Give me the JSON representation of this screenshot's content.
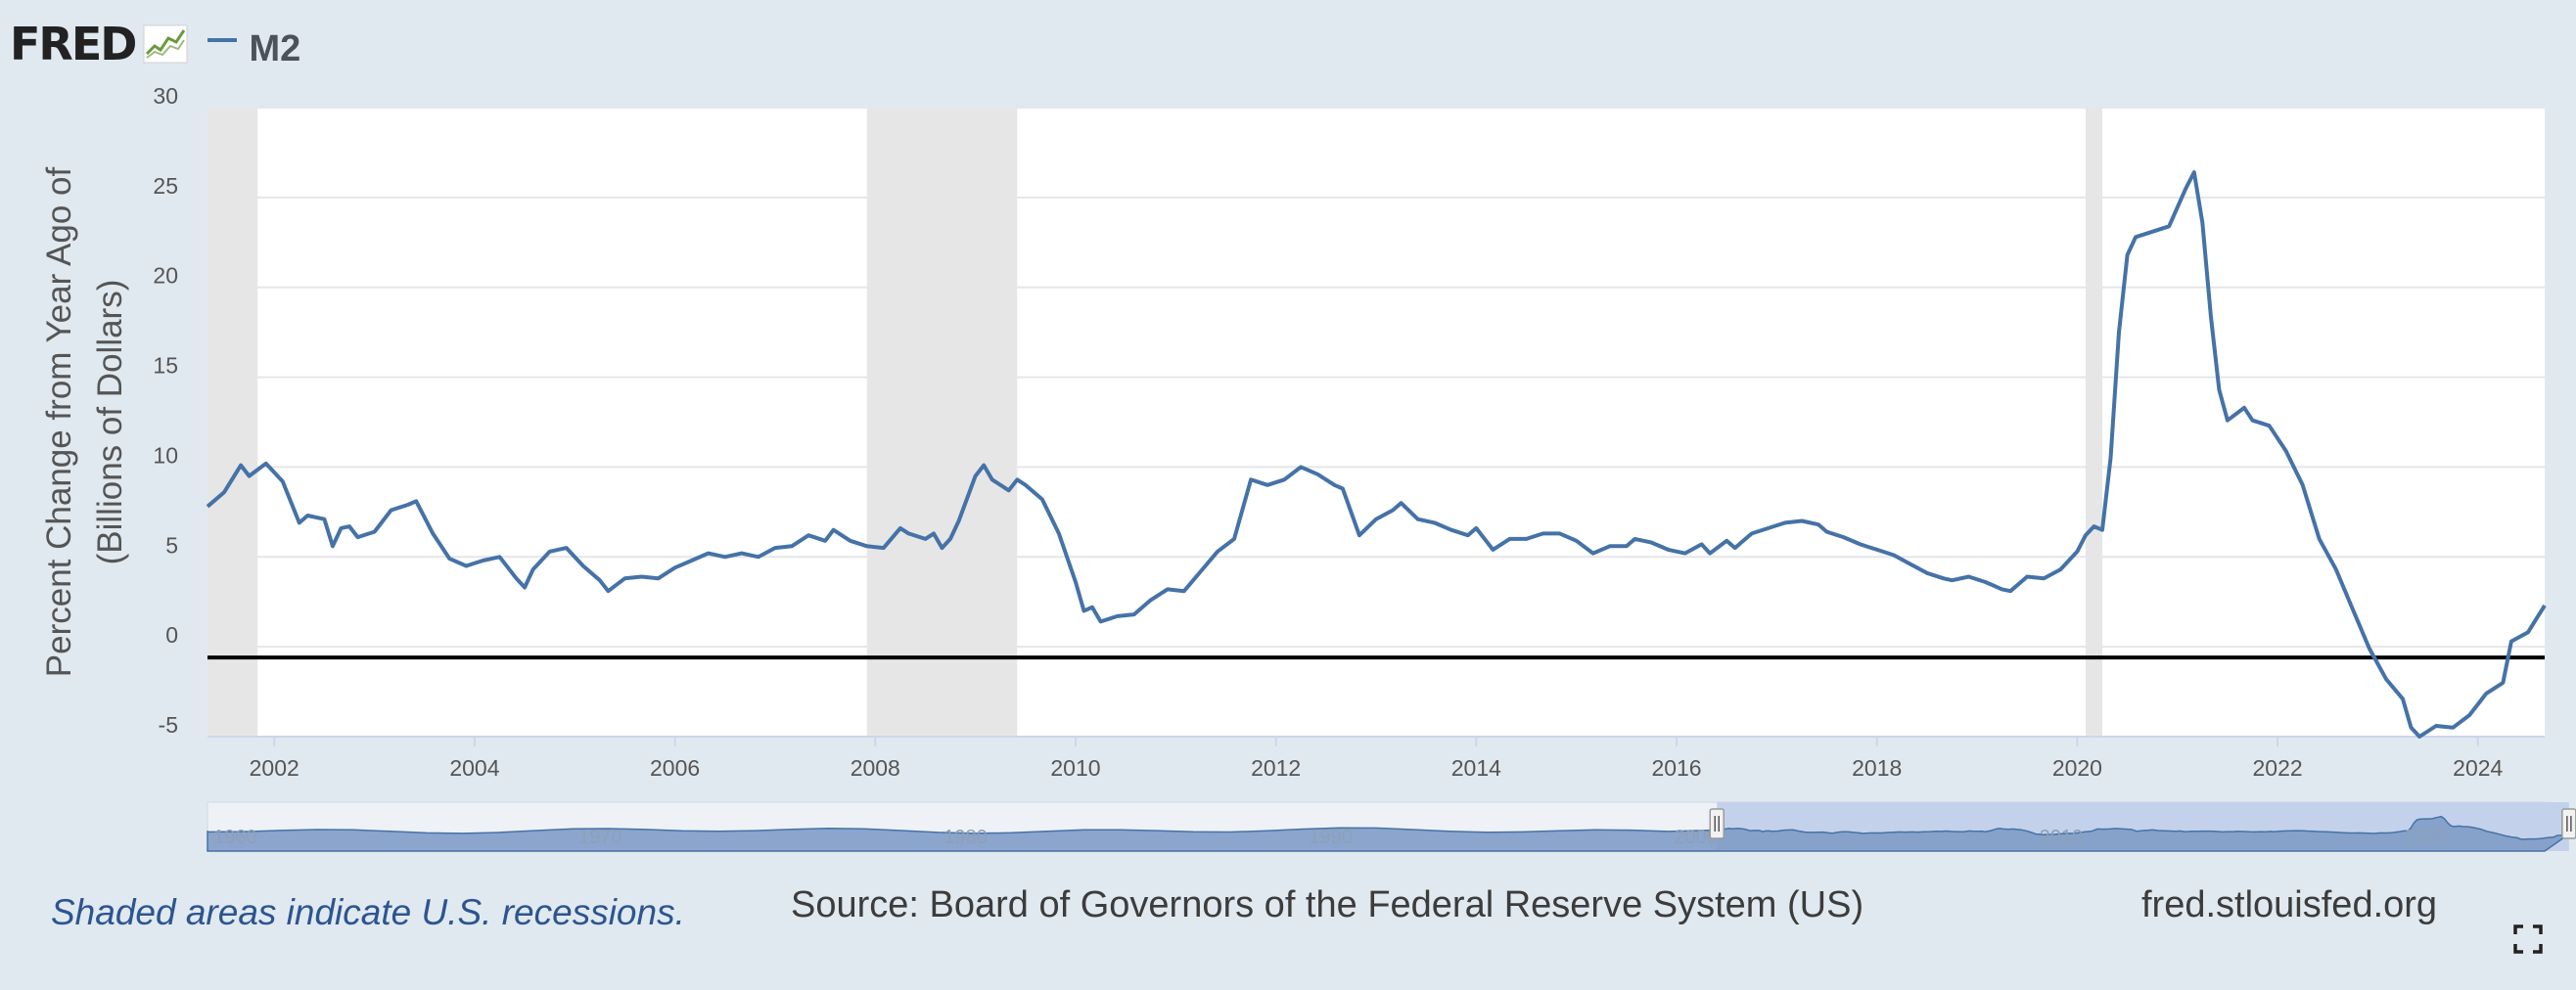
{
  "header": {
    "logo_text": "FRED",
    "legend_label": "M2"
  },
  "footer": {
    "recession_note": "Shaded areas indicate U.S. recessions.",
    "source": "Source: Board of Governors of the Federal Reserve System (US)",
    "site": "fred.stlouisfed.org"
  },
  "colors": {
    "series": "#4572a7",
    "recession": "#e6e6e6",
    "background": "#e1e9f0",
    "navigator_fill": "#7f9cc6",
    "navigator_selection": "#c3d2ea"
  },
  "icons": {
    "fullscreen": "fullscreen-icon",
    "logo_graph": "line-graph-icon"
  },
  "chart_data": {
    "type": "line",
    "ylabel": "Percent Change from Year Ago of (Billions of Dollars)",
    "ylabel_lines": [
      "Percent Change from Year Ago of",
      "(Billions of Dollars)"
    ],
    "ylim": [
      -5,
      30
    ],
    "yticks": [
      -5,
      0,
      5,
      10,
      15,
      20,
      25,
      30
    ],
    "xlim": [
      "2001-05",
      "2024-09"
    ],
    "xticks": [
      "2002",
      "2004",
      "2006",
      "2008",
      "2010",
      "2012",
      "2014",
      "2016",
      "2018",
      "2020",
      "2022",
      "2024"
    ],
    "zero_line": true,
    "grid": "horizontal",
    "recessions": [
      {
        "start": "2001-05",
        "end": "2001-11"
      },
      {
        "start": "2007-12",
        "end": "2009-06"
      },
      {
        "start": "2020-02",
        "end": "2020-04"
      }
    ],
    "series": [
      {
        "name": "M2",
        "points": [
          [
            "2001-05",
            7.8
          ],
          [
            "2001-07",
            8.6
          ],
          [
            "2001-09",
            10.1
          ],
          [
            "2001-10",
            9.5
          ],
          [
            "2001-12",
            10.2
          ],
          [
            "2002-02",
            9.2
          ],
          [
            "2002-04",
            6.9
          ],
          [
            "2002-05",
            7.3
          ],
          [
            "2002-07",
            7.1
          ],
          [
            "2002-08",
            5.6
          ],
          [
            "2002-09",
            6.6
          ],
          [
            "2002-10",
            6.7
          ],
          [
            "2002-11",
            6.1
          ],
          [
            "2003-01",
            6.4
          ],
          [
            "2003-03",
            7.6
          ],
          [
            "2003-05",
            7.9
          ],
          [
            "2003-06",
            8.1
          ],
          [
            "2003-08",
            6.3
          ],
          [
            "2003-10",
            4.9
          ],
          [
            "2003-12",
            4.5
          ],
          [
            "2004-02",
            4.8
          ],
          [
            "2004-04",
            5.0
          ],
          [
            "2004-06",
            3.8
          ],
          [
            "2004-07",
            3.3
          ],
          [
            "2004-08",
            4.3
          ],
          [
            "2004-10",
            5.3
          ],
          [
            "2004-12",
            5.5
          ],
          [
            "2005-02",
            4.5
          ],
          [
            "2005-04",
            3.7
          ],
          [
            "2005-05",
            3.1
          ],
          [
            "2005-07",
            3.8
          ],
          [
            "2005-09",
            3.9
          ],
          [
            "2005-11",
            3.8
          ],
          [
            "2006-01",
            4.4
          ],
          [
            "2006-03",
            4.8
          ],
          [
            "2006-05",
            5.2
          ],
          [
            "2006-07",
            5.0
          ],
          [
            "2006-09",
            5.2
          ],
          [
            "2006-11",
            5.0
          ],
          [
            "2007-01",
            5.5
          ],
          [
            "2007-03",
            5.6
          ],
          [
            "2007-05",
            6.2
          ],
          [
            "2007-07",
            5.9
          ],
          [
            "2007-08",
            6.5
          ],
          [
            "2007-10",
            5.9
          ],
          [
            "2007-12",
            5.6
          ],
          [
            "2008-02",
            5.5
          ],
          [
            "2008-04",
            6.6
          ],
          [
            "2008-05",
            6.3
          ],
          [
            "2008-07",
            6.0
          ],
          [
            "2008-08",
            6.3
          ],
          [
            "2008-09",
            5.5
          ],
          [
            "2008-10",
            6.0
          ],
          [
            "2008-11",
            7.0
          ],
          [
            "2009-01",
            9.5
          ],
          [
            "2009-02",
            10.1
          ],
          [
            "2009-03",
            9.3
          ],
          [
            "2009-05",
            8.7
          ],
          [
            "2009-06",
            9.3
          ],
          [
            "2009-07",
            9.0
          ],
          [
            "2009-09",
            8.2
          ],
          [
            "2009-11",
            6.3
          ],
          [
            "2010-01",
            3.6
          ],
          [
            "2010-02",
            2.0
          ],
          [
            "2010-03",
            2.2
          ],
          [
            "2010-04",
            1.4
          ],
          [
            "2010-06",
            1.7
          ],
          [
            "2010-08",
            1.8
          ],
          [
            "2010-10",
            2.6
          ],
          [
            "2010-12",
            3.2
          ],
          [
            "2011-02",
            3.1
          ],
          [
            "2011-04",
            4.2
          ],
          [
            "2011-06",
            5.3
          ],
          [
            "2011-08",
            6.0
          ],
          [
            "2011-10",
            9.3
          ],
          [
            "2011-12",
            9.0
          ],
          [
            "2012-02",
            9.3
          ],
          [
            "2012-04",
            10.0
          ],
          [
            "2012-06",
            9.6
          ],
          [
            "2012-08",
            9.0
          ],
          [
            "2012-09",
            8.8
          ],
          [
            "2012-11",
            6.2
          ],
          [
            "2013-01",
            7.1
          ],
          [
            "2013-03",
            7.6
          ],
          [
            "2013-04",
            8.0
          ],
          [
            "2013-06",
            7.1
          ],
          [
            "2013-08",
            6.9
          ],
          [
            "2013-10",
            6.5
          ],
          [
            "2013-12",
            6.2
          ],
          [
            "2014-01",
            6.6
          ],
          [
            "2014-03",
            5.4
          ],
          [
            "2014-05",
            6.0
          ],
          [
            "2014-07",
            6.0
          ],
          [
            "2014-09",
            6.3
          ],
          [
            "2014-11",
            6.3
          ],
          [
            "2015-01",
            5.9
          ],
          [
            "2015-03",
            5.2
          ],
          [
            "2015-05",
            5.6
          ],
          [
            "2015-07",
            5.6
          ],
          [
            "2015-08",
            6.0
          ],
          [
            "2015-10",
            5.8
          ],
          [
            "2015-12",
            5.4
          ],
          [
            "2016-02",
            5.2
          ],
          [
            "2016-04",
            5.7
          ],
          [
            "2016-05",
            5.2
          ],
          [
            "2016-07",
            5.9
          ],
          [
            "2016-08",
            5.5
          ],
          [
            "2016-10",
            6.3
          ],
          [
            "2016-12",
            6.6
          ],
          [
            "2017-02",
            6.9
          ],
          [
            "2017-04",
            7.0
          ],
          [
            "2017-06",
            6.8
          ],
          [
            "2017-07",
            6.4
          ],
          [
            "2017-09",
            6.1
          ],
          [
            "2017-11",
            5.7
          ],
          [
            "2018-01",
            5.4
          ],
          [
            "2018-03",
            5.1
          ],
          [
            "2018-05",
            4.6
          ],
          [
            "2018-07",
            4.1
          ],
          [
            "2018-09",
            3.8
          ],
          [
            "2018-10",
            3.7
          ],
          [
            "2018-12",
            3.9
          ],
          [
            "2019-02",
            3.6
          ],
          [
            "2019-04",
            3.2
          ],
          [
            "2019-05",
            3.1
          ],
          [
            "2019-07",
            3.9
          ],
          [
            "2019-09",
            3.8
          ],
          [
            "2019-11",
            4.3
          ],
          [
            "2020-01",
            5.3
          ],
          [
            "2020-02",
            6.2
          ],
          [
            "2020-03",
            6.7
          ],
          [
            "2020-04",
            6.5
          ],
          [
            "2020-05",
            10.5
          ],
          [
            "2020-06",
            17.5
          ],
          [
            "2020-07",
            21.8
          ],
          [
            "2020-08",
            22.8
          ],
          [
            "2020-10",
            23.1
          ],
          [
            "2020-12",
            23.4
          ],
          [
            "2021-02",
            25.5
          ],
          [
            "2021-03",
            26.4
          ],
          [
            "2021-04",
            23.6
          ],
          [
            "2021-05",
            18.4
          ],
          [
            "2021-06",
            14.3
          ],
          [
            "2021-07",
            12.6
          ],
          [
            "2021-09",
            13.3
          ],
          [
            "2021-10",
            12.6
          ],
          [
            "2021-12",
            12.3
          ],
          [
            "2022-02",
            10.9
          ],
          [
            "2022-04",
            9.0
          ],
          [
            "2022-06",
            6.0
          ],
          [
            "2022-08",
            4.3
          ],
          [
            "2022-10",
            2.1
          ],
          [
            "2022-12",
            -0.1
          ],
          [
            "2023-02",
            -1.8
          ],
          [
            "2023-04",
            -2.9
          ],
          [
            "2023-05",
            -4.5
          ],
          [
            "2023-06",
            -5.0
          ],
          [
            "2023-08",
            -4.4
          ],
          [
            "2023-10",
            -4.5
          ],
          [
            "2023-12",
            -3.8
          ],
          [
            "2024-02",
            -2.6
          ],
          [
            "2024-04",
            -2.0
          ],
          [
            "2024-05",
            0.3
          ],
          [
            "2024-07",
            0.8
          ],
          [
            "2024-09",
            2.3
          ]
        ]
      }
    ],
    "navigator": {
      "tick_labels": [
        "1960",
        "1970",
        "1980",
        "1990",
        "2000",
        "2010",
        "2020"
      ],
      "range": [
        "1960",
        "2024"
      ],
      "selection": [
        "2001-05",
        "2024-09"
      ]
    }
  }
}
